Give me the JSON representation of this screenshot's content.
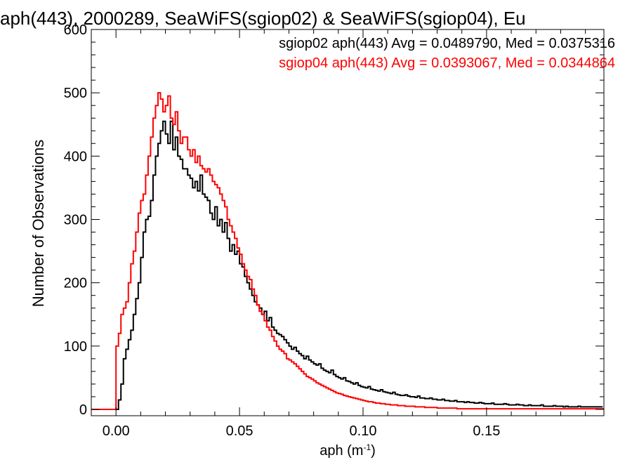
{
  "chart_data": {
    "type": "histogram",
    "title": "aph(443), 2000289, SeaWiFS(sgiop02) & SeaWiFS(sgiop04), Eu",
    "xlabel_main": "aph (m",
    "xlabel_sup": "-1",
    "xlabel_close": ")",
    "ylabel": "Number of Observations",
    "xlim": [
      -0.01,
      0.1975
    ],
    "ylim": [
      -10,
      600
    ],
    "x_ticks": [
      0.0,
      0.05,
      0.1,
      0.15
    ],
    "x_tick_labels": [
      "0.00",
      "0.05",
      "0.10",
      "0.15"
    ],
    "y_ticks": [
      0,
      100,
      200,
      300,
      400,
      500,
      600
    ],
    "y_tick_labels": [
      "0",
      "100",
      "200",
      "300",
      "400",
      "500",
      "600"
    ],
    "bin_width": 0.001,
    "legend": [
      {
        "text": "sgiop02 aph(443) Avg = 0.0489790, Med = 0.0375316",
        "color": "#000000"
      },
      {
        "text": "sgiop04 aph(443) Avg = 0.0393067, Med = 0.0344864",
        "color": "#ff0000"
      }
    ],
    "series": [
      {
        "label": "sgiop02",
        "color": "#000000",
        "x_start": -0.001,
        "counts": [
          0,
          0,
          15,
          40,
          80,
          95,
          110,
          125,
          150,
          175,
          200,
          240,
          280,
          300,
          305,
          330,
          370,
          400,
          420,
          440,
          455,
          435,
          420,
          455,
          410,
          430,
          400,
          395,
          380,
          380,
          370,
          365,
          350,
          360,
          345,
          370,
          340,
          335,
          330,
          310,
          300,
          320,
          290,
          300,
          280,
          295,
          270,
          250,
          260,
          245,
          250,
          230,
          225,
          210,
          200,
          190,
          180,
          170,
          165,
          160,
          150,
          155,
          140,
          145,
          130,
          125,
          120,
          118,
          115,
          110,
          105,
          100,
          95,
          98,
          92,
          88,
          85,
          80,
          84,
          78,
          75,
          72,
          70,
          72,
          65,
          62,
          60,
          58,
          62,
          55,
          52,
          50,
          48,
          50,
          45,
          44,
          42,
          40,
          42,
          38,
          36,
          35,
          34,
          36,
          32,
          31,
          30,
          29,
          31,
          28,
          27,
          26,
          25,
          27,
          24,
          23,
          22,
          22,
          23,
          21,
          20,
          20,
          19,
          21,
          18,
          18,
          17,
          17,
          18,
          16,
          16,
          15,
          15,
          16,
          14,
          14,
          13,
          13,
          14,
          12,
          12,
          12,
          11,
          12,
          11,
          11,
          10,
          10,
          11,
          10,
          9,
          9,
          9,
          10,
          8,
          8,
          8,
          8,
          9,
          8,
          7,
          7,
          7,
          8,
          7,
          7,
          6,
          6,
          7,
          6,
          6,
          6,
          6,
          7,
          5,
          5,
          5,
          5,
          6,
          5,
          5,
          5,
          4,
          5,
          4,
          4,
          4,
          4,
          5,
          4,
          4,
          4,
          4,
          4,
          4,
          4,
          4,
          4
        ]
      },
      {
        "label": "sgiop04",
        "color": "#ff0000",
        "x_start": -0.001,
        "counts": [
          0,
          100,
          120,
          150,
          160,
          170,
          200,
          230,
          250,
          280,
          310,
          330,
          340,
          370,
          400,
          430,
          460,
          480,
          500,
          490,
          470,
          480,
          495,
          460,
          450,
          470,
          440,
          420,
          430,
          430,
          410,
          400,
          410,
          390,
          400,
          385,
          380,
          375,
          380,
          370,
          360,
          355,
          350,
          340,
          330,
          320,
          300,
          290,
          280,
          270,
          255,
          245,
          230,
          220,
          210,
          205,
          190,
          180,
          165,
          155,
          150,
          140,
          130,
          125,
          115,
          108,
          100,
          95,
          92,
          88,
          80,
          78,
          75,
          72,
          68,
          64,
          60,
          56,
          52,
          50,
          48,
          45,
          42,
          40,
          38,
          36,
          34,
          32,
          30,
          28,
          26,
          25,
          24,
          22,
          21,
          20,
          19,
          18,
          17,
          16,
          15,
          14,
          13,
          12,
          12,
          11,
          10,
          10,
          9,
          9,
          8,
          8,
          7,
          7,
          7,
          6,
          6,
          6,
          5,
          5,
          5,
          5,
          4,
          4,
          4,
          4,
          3,
          3,
          3,
          3,
          3,
          2,
          2,
          2,
          2,
          2,
          2,
          2,
          2,
          1,
          1,
          1,
          1,
          1,
          1,
          1,
          1,
          1,
          1,
          1,
          1,
          1,
          1,
          1,
          1,
          1,
          1,
          1,
          1,
          1,
          1,
          1,
          1,
          1,
          1,
          1,
          1,
          1,
          1,
          1,
          1,
          1,
          1,
          1,
          1,
          1,
          1,
          1,
          1,
          1,
          1,
          1,
          1,
          1,
          1,
          1,
          1,
          1,
          1,
          1,
          1,
          1,
          1,
          1,
          1,
          1,
          1,
          1,
          1,
          1
        ]
      }
    ]
  }
}
